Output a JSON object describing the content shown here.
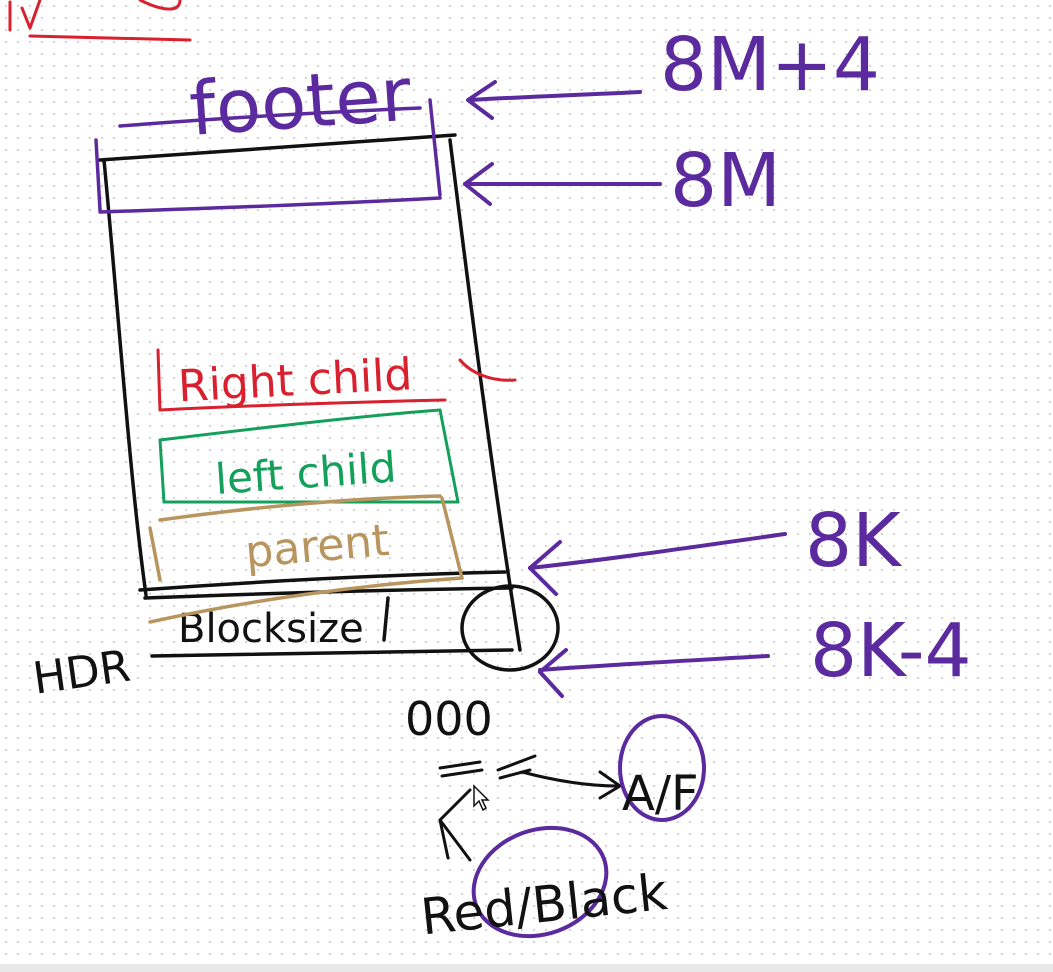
{
  "diagram": {
    "labels": {
      "footer": "footer",
      "right_child": "Right child",
      "left_child": "left child",
      "parent": "parent",
      "hdr": "HDR",
      "blocksize": "Blocksize",
      "mark_8m_plus_4": "8M+4",
      "mark_8m": "8M",
      "mark_8k": "8K",
      "mark_8k_minus_4": "8K-4",
      "bits": "000",
      "af": "A/F",
      "red_black": "Red/Black"
    },
    "colors": {
      "purple": "#5b2a9e",
      "black": "#111111",
      "red": "#d8202e",
      "green": "#13a05a",
      "tan": "#b8955e"
    }
  }
}
